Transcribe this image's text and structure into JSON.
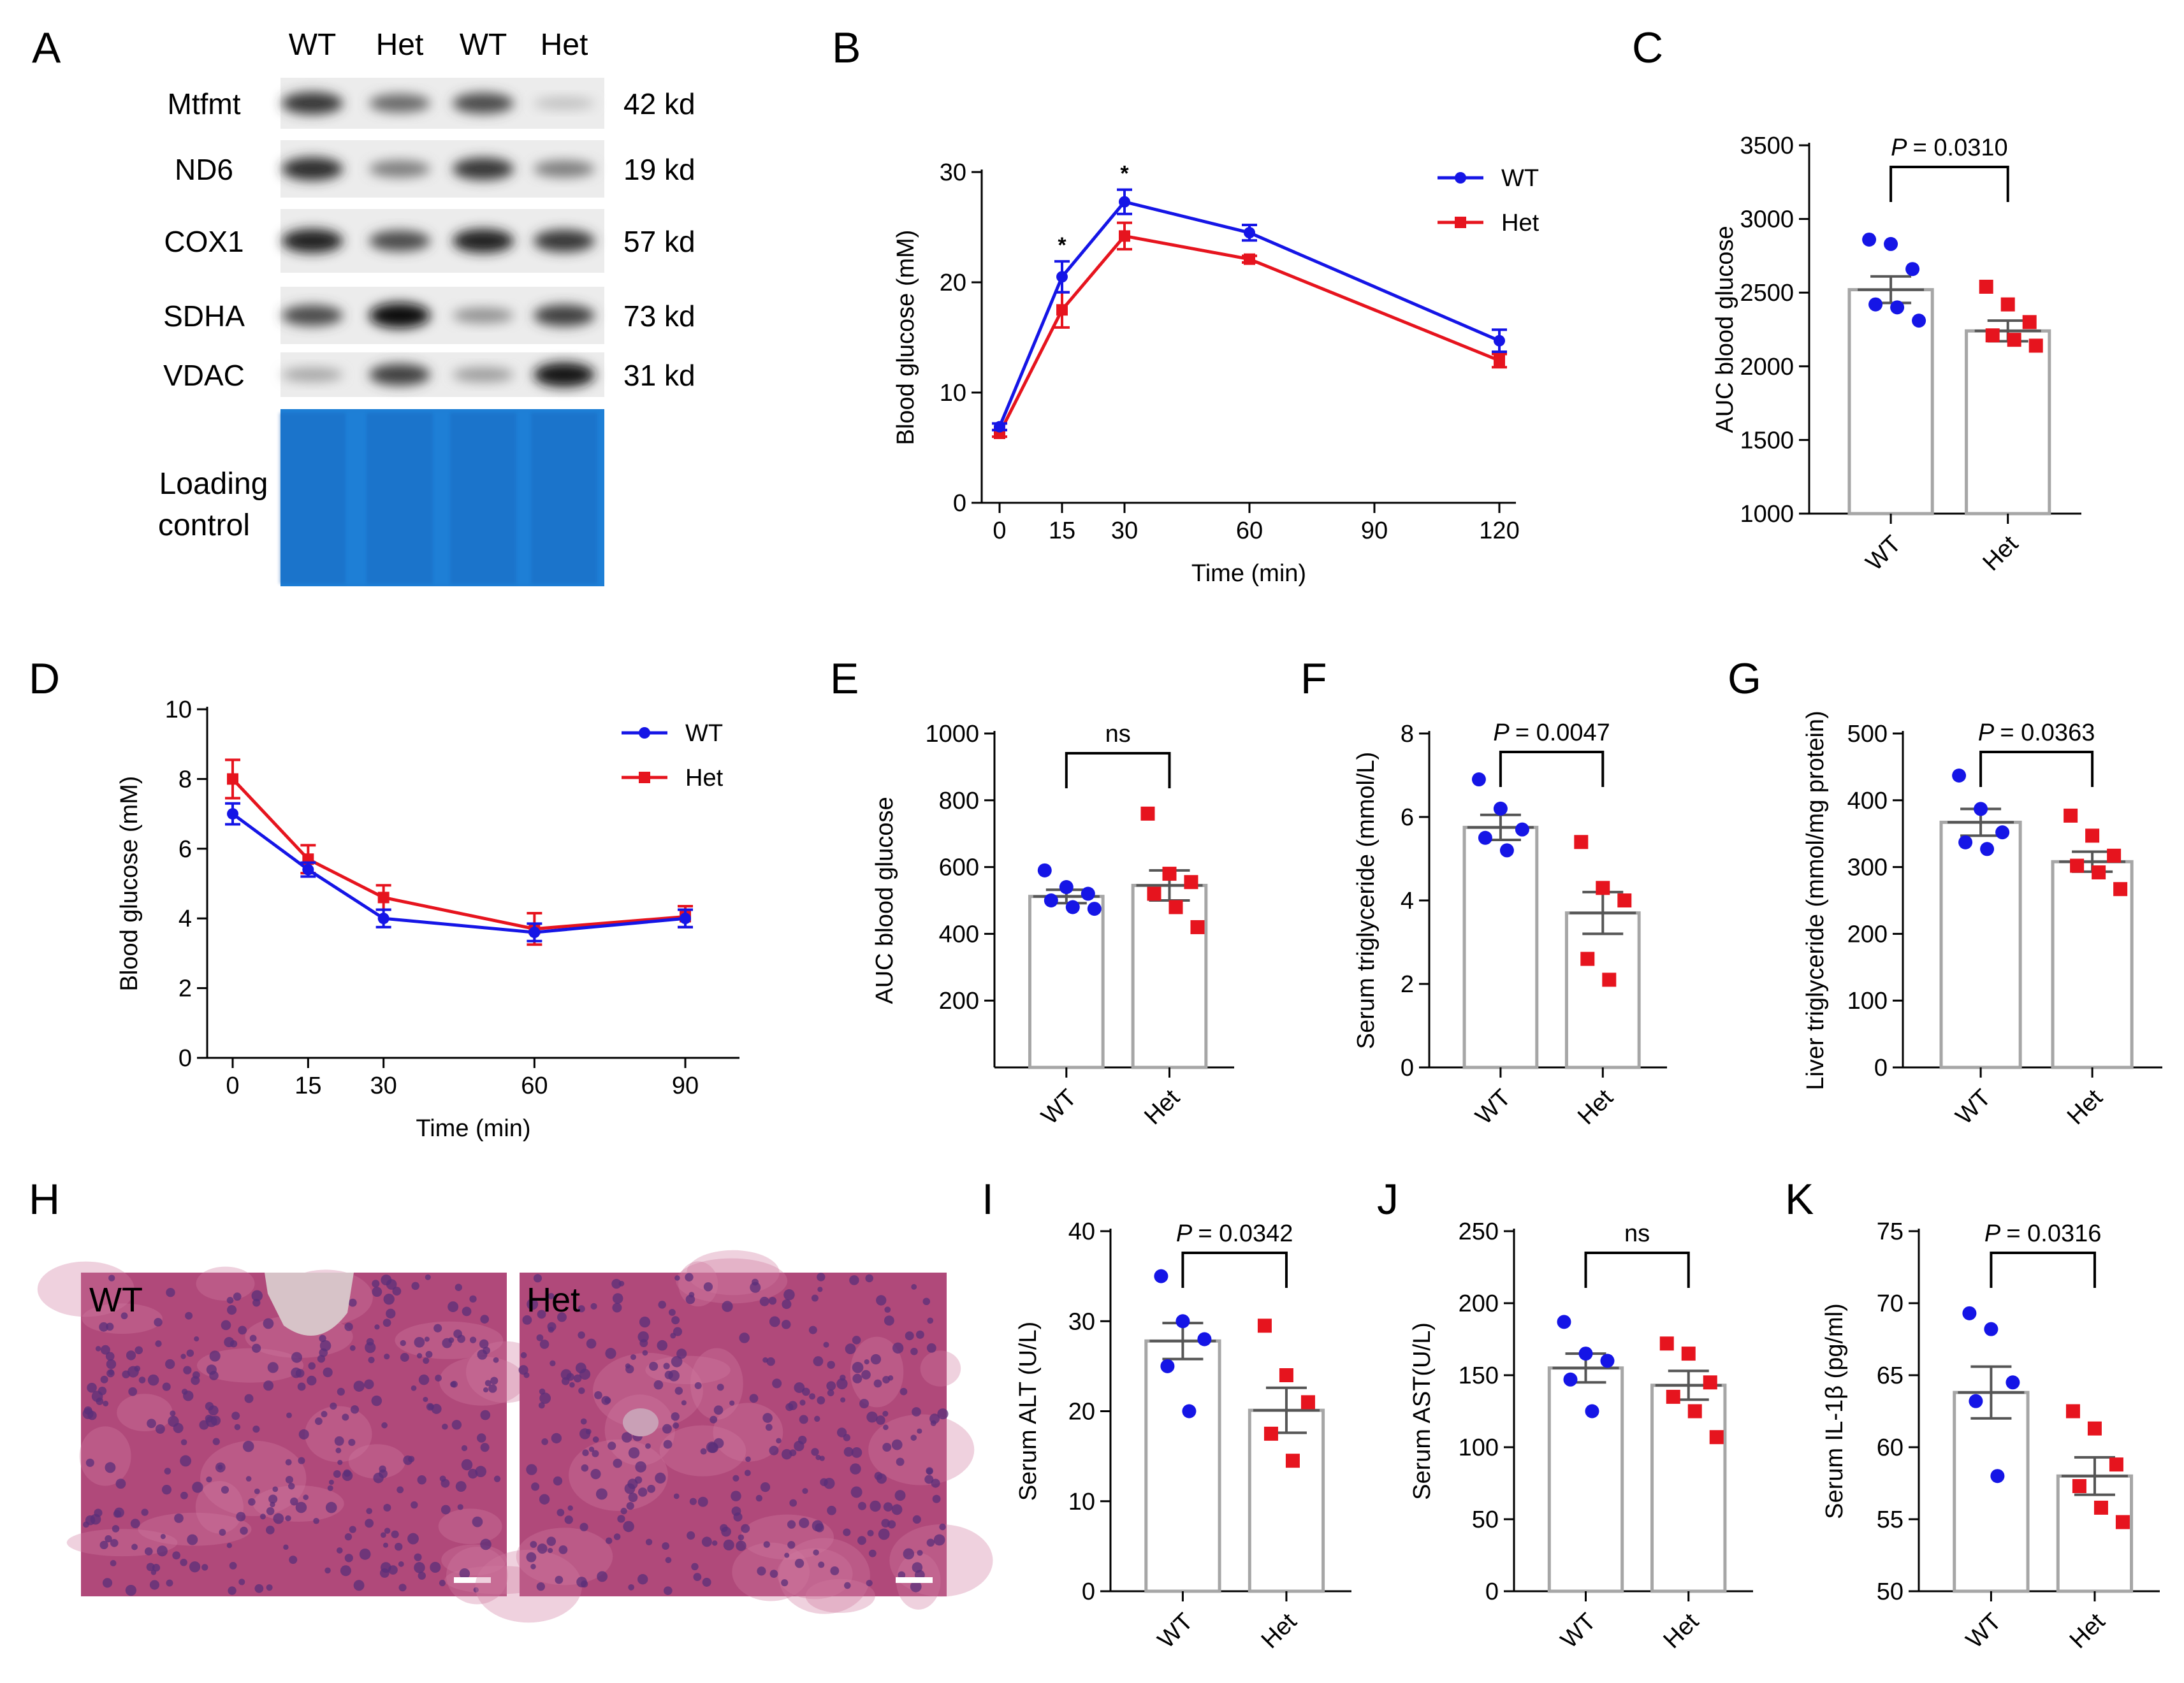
{
  "panels": {
    "A": {
      "letter": "A",
      "lane_labels": [
        "WT",
        "Het",
        "WT",
        "Het"
      ],
      "rows": [
        {
          "name": "Mtfmt",
          "size": "42 kd",
          "intensity": [
            0.8,
            0.55,
            0.7,
            0.12
          ]
        },
        {
          "name": "ND6",
          "size": "19 kd",
          "intensity": [
            0.85,
            0.45,
            0.8,
            0.45
          ]
        },
        {
          "name": "COX1",
          "size": "57 kd",
          "intensity": [
            0.9,
            0.7,
            0.9,
            0.8
          ]
        },
        {
          "name": "SDHA",
          "size": "73 kd",
          "intensity": [
            0.7,
            1.0,
            0.35,
            0.75
          ]
        },
        {
          "name": "VDAC",
          "size": "31 kd",
          "intensity": [
            0.25,
            0.75,
            0.3,
            0.95
          ]
        }
      ],
      "loading_label_line1": "Loading",
      "loading_label_line2": "control",
      "loading_color": "#1e7fd6"
    },
    "B": {
      "letter": "B"
    },
    "C": {
      "letter": "C"
    },
    "D": {
      "letter": "D"
    },
    "E": {
      "letter": "E"
    },
    "F": {
      "letter": "F"
    },
    "G": {
      "letter": "G"
    },
    "H": {
      "letter": "H",
      "labels": [
        "WT",
        "Het"
      ],
      "tissue_color": "#b0497a",
      "nucleus_color": "#5a2f7a"
    },
    "I": {
      "letter": "I"
    },
    "J": {
      "letter": "J"
    },
    "K": {
      "letter": "K"
    }
  },
  "colors": {
    "wt": "#1515e6",
    "het": "#e6141e",
    "bar_outline": "#a6a6a6"
  },
  "chart_data": [
    {
      "panel": "B",
      "type": "line",
      "x": [
        0,
        15,
        30,
        60,
        120
      ],
      "xticks": [
        "0",
        "15",
        "30",
        "60",
        "90",
        "120"
      ],
      "xtick_values": [
        0,
        15,
        30,
        60,
        90,
        120
      ],
      "yticks": [
        "0",
        "10",
        "20",
        "30"
      ],
      "xlabel": "Time (min)",
      "ylabel": "Blood glucose (mM)",
      "xlim": [
        0,
        120
      ],
      "ylim": [
        0,
        30
      ],
      "legend": "top-right",
      "series": [
        {
          "name": "WT",
          "values": [
            6.9,
            20.5,
            27.3,
            24.5,
            14.7
          ],
          "errors": [
            0.3,
            1.4,
            1.1,
            0.7,
            1.0
          ]
        },
        {
          "name": "Het",
          "values": [
            6.3,
            17.5,
            24.2,
            22.1,
            12.9
          ],
          "errors": [
            0.3,
            1.6,
            1.2,
            0.3,
            0.6
          ]
        }
      ],
      "annotations": [
        {
          "x": 15,
          "text": "*"
        },
        {
          "x": 30,
          "text": "*"
        }
      ]
    },
    {
      "panel": "C",
      "type": "bar",
      "categories": [
        "WT",
        "Het"
      ],
      "values": [
        2520,
        2240
      ],
      "errors": [
        90,
        70
      ],
      "points": [
        [
          2860,
          2830,
          2660,
          2420,
          2400,
          2310
        ],
        [
          2540,
          2420,
          2300,
          2210,
          2180,
          2140
        ]
      ],
      "ylabel": "AUC blood glucose",
      "ylim": [
        1000,
        3500
      ],
      "yticks": [
        "1000",
        "1500",
        "2000",
        "2500",
        "3000",
        "3500"
      ],
      "stat": "= 0.0310"
    },
    {
      "panel": "D",
      "type": "line",
      "x": [
        0,
        15,
        30,
        60,
        90
      ],
      "xticks": [
        "0",
        "15",
        "30",
        "60",
        "90"
      ],
      "xtick_values": [
        0,
        15,
        30,
        60,
        90
      ],
      "yticks": [
        "0",
        "2",
        "4",
        "6",
        "8",
        "10"
      ],
      "xlabel": "Time (min)",
      "ylabel": "Blood glucose (mM)",
      "xlim": [
        0,
        90
      ],
      "ylim": [
        0,
        10
      ],
      "legend": "top-right",
      "series": [
        {
          "name": "WT",
          "values": [
            7.0,
            5.4,
            4.0,
            3.6,
            4.0
          ],
          "errors": [
            0.3,
            0.2,
            0.25,
            0.25,
            0.25
          ]
        },
        {
          "name": "Het",
          "values": [
            8.0,
            5.7,
            4.6,
            3.7,
            4.05
          ],
          "errors": [
            0.55,
            0.4,
            0.35,
            0.45,
            0.3
          ]
        }
      ]
    },
    {
      "panel": "E",
      "type": "bar",
      "categories": [
        "WT",
        "Het"
      ],
      "values": [
        512,
        545
      ],
      "errors": [
        20,
        45
      ],
      "points": [
        [
          590,
          540,
          520,
          500,
          480,
          475
        ],
        [
          760,
          580,
          555,
          520,
          480,
          420
        ]
      ],
      "ylabel": "AUC blood glucose",
      "ylim": [
        0,
        1000
      ],
      "yticks": [
        "200",
        "400",
        "600",
        "800",
        "1000"
      ],
      "ytick_values": [
        200,
        400,
        600,
        800,
        1000
      ],
      "stat": "ns"
    },
    {
      "panel": "F",
      "type": "bar",
      "categories": [
        "WT",
        "Het"
      ],
      "values": [
        5.75,
        3.7
      ],
      "errors": [
        0.3,
        0.5
      ],
      "points": [
        [
          6.9,
          6.2,
          5.7,
          5.5,
          5.2
        ],
        [
          5.4,
          4.3,
          4.0,
          2.6,
          2.1
        ]
      ],
      "ylabel": "Serum triglyceride (mmol/L)",
      "ylim": [
        0,
        8
      ],
      "yticks": [
        "0",
        "2",
        "4",
        "6",
        "8"
      ],
      "stat": "= 0.0047"
    },
    {
      "panel": "G",
      "type": "bar",
      "categories": [
        "WT",
        "Het"
      ],
      "values": [
        367,
        308
      ],
      "errors": [
        20,
        15
      ],
      "points": [
        [
          437,
          387,
          352,
          337,
          327
        ],
        [
          377,
          347,
          317,
          302,
          292,
          267
        ]
      ],
      "ylabel": "Liver triglyceride (mmol/mg protein)",
      "ylim": [
        0,
        500
      ],
      "yticks": [
        "0",
        "100",
        "200",
        "300",
        "400",
        "500"
      ],
      "stat": "= 0.0363"
    },
    {
      "panel": "I",
      "type": "bar",
      "categories": [
        "WT",
        "Het"
      ],
      "values": [
        27.8,
        20.1
      ],
      "errors": [
        2.0,
        2.5
      ],
      "points": [
        [
          35,
          30,
          28,
          25,
          20
        ],
        [
          29.5,
          24,
          21,
          17.5,
          14.5
        ]
      ],
      "ylabel": "Serum ALT (U/L)",
      "ylim": [
        0,
        40
      ],
      "yticks": [
        "0",
        "10",
        "20",
        "30",
        "40"
      ],
      "stat": "= 0.0342"
    },
    {
      "panel": "J",
      "type": "bar",
      "categories": [
        "WT",
        "Het"
      ],
      "values": [
        155,
        143
      ],
      "errors": [
        10,
        10
      ],
      "points": [
        [
          187,
          165,
          160,
          147,
          125
        ],
        [
          172,
          165,
          145,
          135,
          125,
          107
        ]
      ],
      "ylabel": "Serum AST(U/L)",
      "ylim": [
        0,
        250
      ],
      "yticks": [
        "0",
        "50",
        "100",
        "150",
        "200",
        "250"
      ],
      "stat": "ns"
    },
    {
      "panel": "K",
      "type": "bar",
      "categories": [
        "WT",
        "Het"
      ],
      "values": [
        63.8,
        58.0
      ],
      "errors": [
        1.8,
        1.3
      ],
      "points": [
        [
          69.3,
          68.2,
          64.5,
          63.2,
          58.0
        ],
        [
          62.5,
          61.3,
          58.8,
          57.3,
          55.8,
          54.8
        ]
      ],
      "ylabel": "Serum IL-1β (pg/ml)",
      "ylim": [
        50,
        75
      ],
      "yticks": [
        "50",
        "55",
        "60",
        "65",
        "70",
        "75"
      ],
      "stat": "= 0.0316"
    }
  ]
}
